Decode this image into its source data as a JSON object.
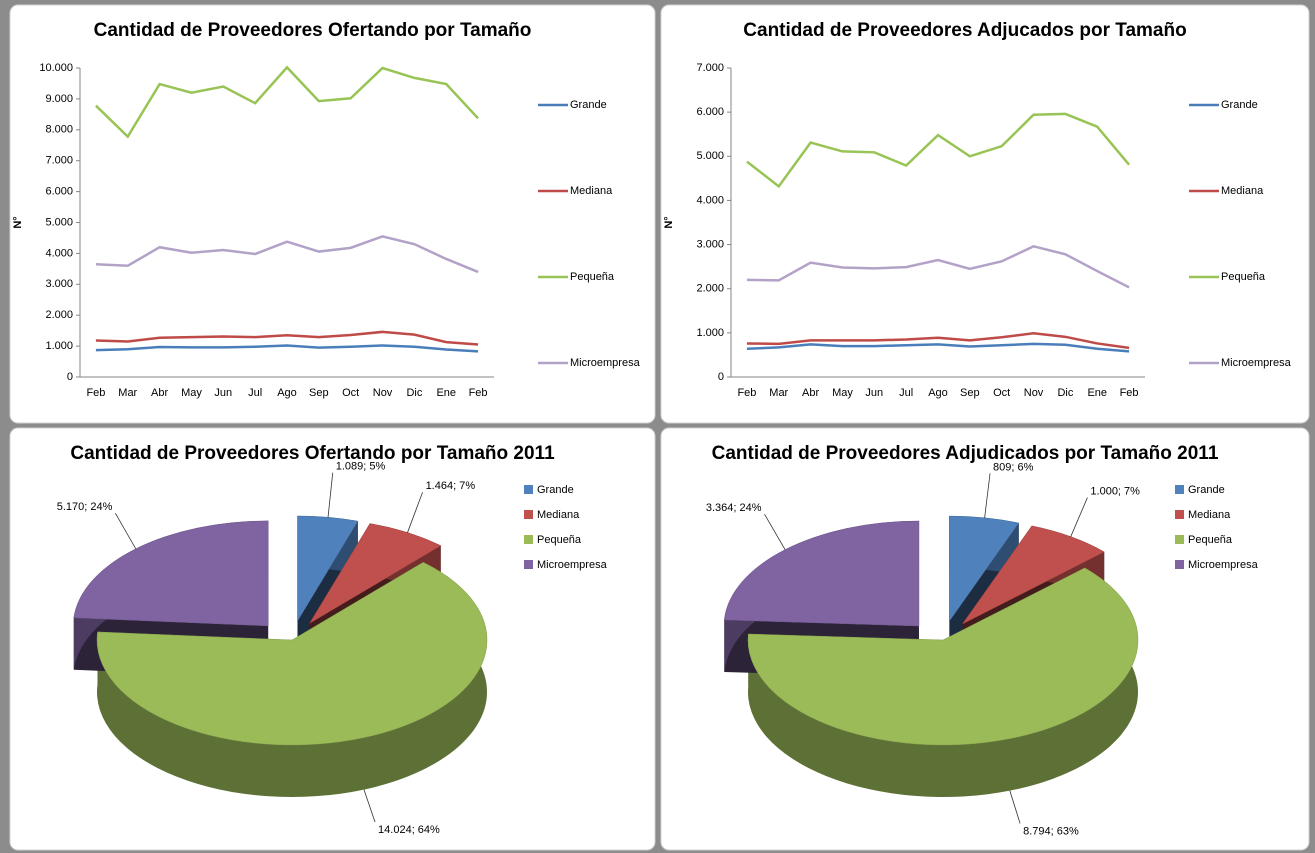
{
  "chart_data": [
    {
      "type": "line",
      "title": "Cantidad de Proveedores Ofertando por Tamaño",
      "ylabel": "N°",
      "categories": [
        "Feb",
        "Mar",
        "Abr",
        "May",
        "Jun",
        "Jul",
        "Ago",
        "Sep",
        "Oct",
        "Nov",
        "Dic",
        "Ene",
        "Feb"
      ],
      "series": [
        {
          "name": "Grande",
          "color": "#4a7ebb",
          "values": [
            870,
            900,
            970,
            960,
            960,
            980,
            1020,
            950,
            980,
            1020,
            980,
            890,
            830
          ]
        },
        {
          "name": "Mediana",
          "color": "#be4b48",
          "values": [
            1180,
            1150,
            1270,
            1290,
            1310,
            1290,
            1350,
            1290,
            1360,
            1460,
            1370,
            1130,
            1050
          ]
        },
        {
          "name": "Pequeña",
          "color": "#98c455",
          "values": [
            8780,
            7780,
            9480,
            9200,
            9400,
            8860,
            10020,
            8930,
            9020,
            10000,
            9680,
            9480,
            8370
          ]
        },
        {
          "name": "Microempresa",
          "color": "#b3a2c7",
          "values": [
            3650,
            3600,
            4200,
            4020,
            4110,
            3980,
            4380,
            4060,
            4180,
            4550,
            4300,
            3820,
            3400
          ]
        }
      ],
      "ylim": [
        0,
        10000
      ],
      "yticks": [
        0,
        {
          "value": 1000,
          "label": "1.000"
        },
        {
          "value": 2000,
          "label": "2.000"
        },
        {
          "value": 3000,
          "label": "3.000"
        },
        {
          "value": 4000,
          "label": "4.000"
        },
        {
          "value": 5000,
          "label": "5.000"
        },
        {
          "value": 6000,
          "label": "6.000"
        },
        {
          "value": 7000,
          "label": "7.000"
        },
        {
          "value": 8000,
          "label": "8.000"
        },
        {
          "value": 9000,
          "label": "9.000"
        },
        {
          "value": 10000,
          "label": "10.000"
        }
      ],
      "grid": false,
      "legend": "right"
    },
    {
      "type": "line",
      "title": "Cantidad de Proveedores Adjucados por Tamaño",
      "ylabel": "N°",
      "categories": [
        "Feb",
        "Mar",
        "Abr",
        "May",
        "Jun",
        "Jul",
        "Ago",
        "Sep",
        "Oct",
        "Nov",
        "Dic",
        "Ene",
        "Feb"
      ],
      "series": [
        {
          "name": "Grande",
          "color": "#4a7ebb",
          "values": [
            640,
            670,
            740,
            700,
            700,
            720,
            740,
            690,
            720,
            750,
            730,
            640,
            580
          ]
        },
        {
          "name": "Mediana",
          "color": "#be4b48",
          "values": [
            760,
            750,
            830,
            830,
            830,
            850,
            890,
            830,
            900,
            990,
            910,
            760,
            660
          ]
        },
        {
          "name": "Pequeña",
          "color": "#98c455",
          "values": [
            4880,
            4320,
            5310,
            5110,
            5090,
            4790,
            5480,
            5000,
            5230,
            5940,
            5960,
            5670,
            4810
          ]
        },
        {
          "name": "Microempresa",
          "color": "#b3a2c7",
          "values": [
            2200,
            2190,
            2590,
            2480,
            2460,
            2490,
            2650,
            2450,
            2620,
            2960,
            2780,
            2400,
            2030
          ]
        }
      ],
      "ylim": [
        0,
        7000
      ],
      "yticks": [
        0,
        {
          "value": 1000,
          "label": "1.000"
        },
        {
          "value": 2000,
          "label": "2.000"
        },
        {
          "value": 3000,
          "label": "3.000"
        },
        {
          "value": 4000,
          "label": "4.000"
        },
        {
          "value": 5000,
          "label": "5.000"
        },
        {
          "value": 6000,
          "label": "6.000"
        },
        {
          "value": 7000,
          "label": "7.000"
        }
      ],
      "grid": false,
      "legend": "right"
    },
    {
      "type": "pie",
      "title": "Cantidad de Proveedores Ofertando por Tamaño 2011",
      "categories": [
        "Grande",
        "Mediana",
        "Pequeña",
        "Microempresa"
      ],
      "values": [
        1089,
        1464,
        14024,
        5170
      ],
      "value_labels": [
        "1.089; 5%",
        "1.464; 7%",
        "14.024; 64%",
        "5.170; 24%"
      ],
      "colors": [
        "#4f81bd",
        "#c0504d",
        "#9bbb59",
        "#8064a2"
      ],
      "legend": "right"
    },
    {
      "type": "pie",
      "title": "Cantidad de Proveedores Adjudicados por Tamaño 2011",
      "categories": [
        "Grande",
        "Mediana",
        "Pequeña",
        "Microempresa"
      ],
      "values": [
        809,
        1000,
        8794,
        3364
      ],
      "value_labels": [
        "809; 6%",
        "1.000; 7%",
        "8.794; 63%",
        "3.364; 24%"
      ],
      "colors": [
        "#4f81bd",
        "#c0504d",
        "#9bbb59",
        "#8064a2"
      ],
      "legend": "right"
    }
  ]
}
